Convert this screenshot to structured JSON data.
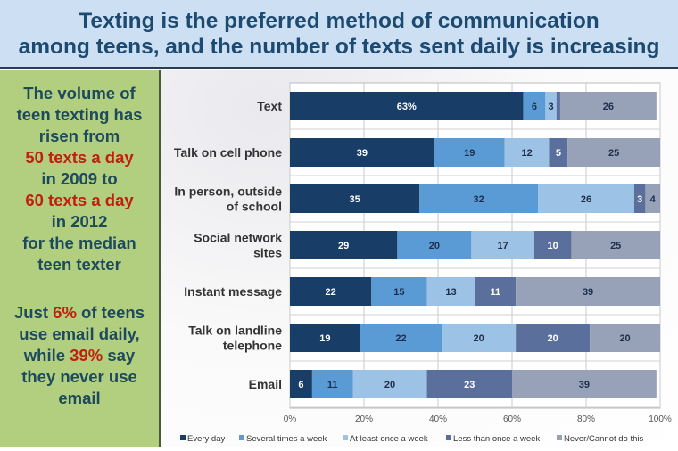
{
  "header": {
    "title_line1": "Texting is the preferred method of communication",
    "title_line2": "among teens, and the number of texts sent daily is increasing"
  },
  "sidebar": {
    "p1": [
      {
        "t": "The volume of",
        "red": false
      },
      {
        "t": "teen texting has",
        "red": false
      },
      {
        "t": "risen from",
        "red": false
      },
      {
        "t": "50 texts a day",
        "red": true
      },
      {
        "t": "in 2009 to",
        "red": false
      },
      {
        "t": "60 texts a day",
        "red": true
      },
      {
        "t": "in 2012",
        "red": false
      },
      {
        "t": "for the median",
        "red": false
      },
      {
        "t": "teen texter",
        "red": false
      }
    ],
    "p2_line1_pre": "Just ",
    "p2_line1_red": "6%",
    "p2_line1_post": " of teens",
    "p2_line2": "use email daily,",
    "p2_line3_pre": "while ",
    "p2_line3_red": "39%",
    "p2_line3_post": " say",
    "p2_line4": "they never use",
    "p2_line5": "email"
  },
  "colors": {
    "accent_red": "#c0200e",
    "title_bg": "#cde0f3",
    "side_bg": "#b2ce7f"
  },
  "chart_data": {
    "type": "bar",
    "orientation": "horizontal-stacked-100",
    "categories": [
      [
        "Text"
      ],
      [
        "Talk on cell phone"
      ],
      [
        "In person, outside",
        "of school"
      ],
      [
        "Social network",
        "sites"
      ],
      [
        "Instant message"
      ],
      [
        "Talk on landline",
        "telephone"
      ],
      [
        "Email"
      ]
    ],
    "series": [
      {
        "name": "Every day",
        "color": "#183d66",
        "values": [
          63,
          39,
          35,
          29,
          22,
          19,
          6
        ],
        "labels": [
          "63%",
          "39",
          "35",
          "29",
          "22",
          "19",
          "6"
        ]
      },
      {
        "name": "Several times a week",
        "color": "#5b9bd5",
        "values": [
          6,
          19,
          32,
          20,
          15,
          22,
          11
        ],
        "labels": [
          "6",
          "19",
          "32",
          "20",
          "15",
          "22",
          "11"
        ]
      },
      {
        "name": "At least once a week",
        "color": "#9cc2e5",
        "values": [
          3,
          12,
          26,
          17,
          13,
          20,
          20
        ],
        "labels": [
          "3",
          "12",
          "26",
          "17",
          "13",
          "20",
          "20"
        ]
      },
      {
        "name": "Less than once a week",
        "color": "#5a6f9c",
        "values": [
          1,
          5,
          3,
          10,
          11,
          20,
          23
        ],
        "labels": [
          "",
          "5",
          "3",
          "10",
          "11",
          "20",
          "23"
        ]
      },
      {
        "name": "Never/Cannot do this",
        "color": "#97a2b8",
        "values": [
          26,
          25,
          4,
          25,
          39,
          20,
          39
        ],
        "labels": [
          "26",
          "25",
          "4",
          "25",
          "39",
          "20",
          "39"
        ]
      }
    ],
    "xlim": [
      0,
      100
    ],
    "xticks": [
      "0%",
      "20%",
      "40%",
      "60%",
      "80%",
      "100%"
    ],
    "grid": true,
    "legend": "bottom"
  }
}
